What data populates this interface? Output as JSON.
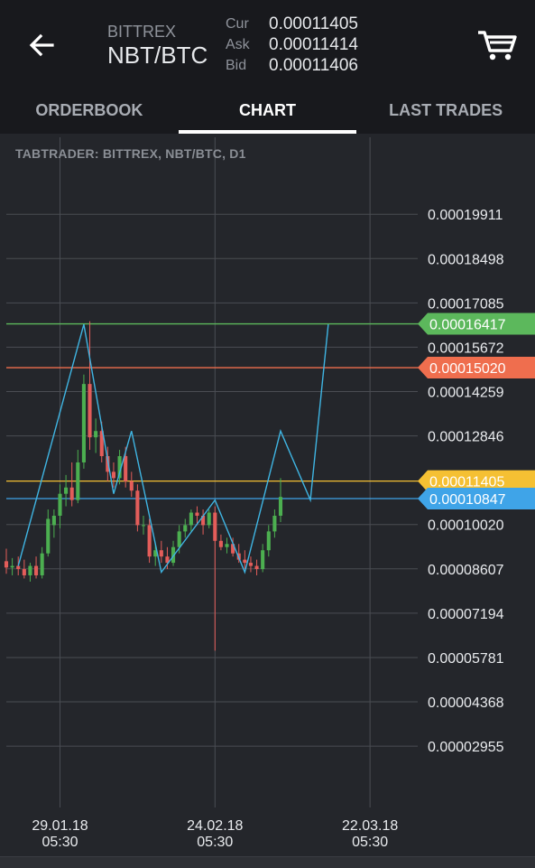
{
  "header": {
    "exchange": "BITTREX",
    "pair": "NBT/BTC",
    "quotes": [
      {
        "label": "Cur",
        "value": "0.00011405"
      },
      {
        "label": "Ask",
        "value": "0.00011414"
      },
      {
        "label": "Bid",
        "value": "0.00011406"
      }
    ],
    "back_icon": "arrow-left-icon",
    "cart_icon": "shopping-cart-icon"
  },
  "tabs": [
    {
      "label": "ORDERBOOK",
      "active": false
    },
    {
      "label": "CHART",
      "active": true
    },
    {
      "label": "LAST TRADES",
      "active": false
    }
  ],
  "chart_caption": "TABTRADER: BITTREX, NBT/BTC, D1",
  "chart_data": {
    "type": "candlestick",
    "title": "TABTRADER: BITTREX, NBT/BTC, D1",
    "y_ticks": [
      "0.00019911",
      "0.00018498",
      "0.00017085",
      "0.00015672",
      "0.00014259",
      "0.00012846",
      "0.00010020",
      "0.00008607",
      "0.00007194",
      "0.00005781",
      "0.00004368",
      "0.00002955"
    ],
    "x_ticks": [
      {
        "date": "29.01.18",
        "time": "05:30",
        "day": 0
      },
      {
        "date": "24.02.18",
        "time": "05:30",
        "day": 26
      },
      {
        "date": "22.03.18",
        "time": "05:30",
        "day": 52
      }
    ],
    "ylim": [
      1e-05,
      0.000215
    ],
    "xlim": [
      -9,
      60
    ],
    "colors": {
      "up": "#4caf50",
      "down": "#e35d5a",
      "grid": "#4a4d53",
      "axis_text": "#e9ebee",
      "trend": "#3fb5e3"
    },
    "price_lines": [
      {
        "value": "0.00016417",
        "color": "#5cb85c"
      },
      {
        "value": "0.00015020",
        "color": "#ef6e4e"
      },
      {
        "value": "0.00011405",
        "color": "#f5c033"
      },
      {
        "value": "0.00010847",
        "color": "#3fa4e8"
      }
    ],
    "candles": [
      {
        "day": -9,
        "o": 8.85e-05,
        "h": 9.25e-05,
        "l": 8.45e-05,
        "c": 8.65e-05
      },
      {
        "day": -8,
        "o": 8.65e-05,
        "h": 8.95e-05,
        "l": 8.4e-05,
        "c": 8.7e-05
      },
      {
        "day": -7,
        "o": 8.7e-05,
        "h": 9e-05,
        "l": 8.4e-05,
        "c": 8.6e-05
      },
      {
        "day": -6,
        "o": 8.6e-05,
        "h": 8.9e-05,
        "l": 8.3e-05,
        "c": 8.4e-05
      },
      {
        "day": -5,
        "o": 8.4e-05,
        "h": 8.8e-05,
        "l": 8.2e-05,
        "c": 8.7e-05
      },
      {
        "day": -4,
        "o": 8.7e-05,
        "h": 9e-05,
        "l": 8.3e-05,
        "c": 8.4e-05
      },
      {
        "day": -3,
        "o": 8.4e-05,
        "h": 9.3e-05,
        "l": 8.3e-05,
        "c": 9.1e-05
      },
      {
        "day": -2,
        "o": 9.1e-05,
        "h": 0.000105,
        "l": 9e-05,
        "c": 0.000102
      },
      {
        "day": -1,
        "o": 0.0001,
        "h": 0.000105,
        "l": 9.6e-05,
        "c": 0.000103
      },
      {
        "day": 0,
        "o": 0.000103,
        "h": 0.000113,
        "l": 9.9e-05,
        "c": 0.00011
      },
      {
        "day": 1,
        "o": 0.00011,
        "h": 0.000116,
        "l": 0.000106,
        "c": 0.000112
      },
      {
        "day": 2,
        "o": 0.000112,
        "h": 0.00012,
        "l": 0.000106,
        "c": 0.000108
      },
      {
        "day": 3,
        "o": 0.000108,
        "h": 0.000124,
        "l": 0.000107,
        "c": 0.00012
      },
      {
        "day": 4,
        "o": 0.00012,
        "h": 0.000148,
        "l": 0.000118,
        "c": 0.000145
      },
      {
        "day": 5,
        "o": 0.000145,
        "h": 0.000165,
        "l": 0.000124,
        "c": 0.000128
      },
      {
        "day": 6,
        "o": 0.000128,
        "h": 0.000134,
        "l": 0.000123,
        "c": 0.00013
      },
      {
        "day": 7,
        "o": 0.00013,
        "h": 0.000133,
        "l": 0.00012,
        "c": 0.000122
      },
      {
        "day": 8,
        "o": 0.000122,
        "h": 0.000125,
        "l": 0.000114,
        "c": 0.000117
      },
      {
        "day": 9,
        "o": 0.000117,
        "h": 0.00012,
        "l": 0.000112,
        "c": 0.000115
      },
      {
        "day": 10,
        "o": 0.000115,
        "h": 0.000124,
        "l": 0.000113,
        "c": 0.000122
      },
      {
        "day": 11,
        "o": 0.000122,
        "h": 0.000125,
        "l": 0.000112,
        "c": 0.000114
      },
      {
        "day": 12,
        "o": 0.000114,
        "h": 0.000117,
        "l": 0.000109,
        "c": 0.000111
      },
      {
        "day": 13,
        "o": 0.000111,
        "h": 0.000113,
        "l": 9.8e-05,
        "c": 0.0001
      },
      {
        "day": 14,
        "o": 0.0001,
        "h": 0.000103,
        "l": 9.7e-05,
        "c": 0.0001
      },
      {
        "day": 15,
        "o": 0.0001,
        "h": 0.000102,
        "l": 8.8e-05,
        "c": 9e-05
      },
      {
        "day": 16,
        "o": 9e-05,
        "h": 9.4e-05,
        "l": 8.7e-05,
        "c": 9.2e-05
      },
      {
        "day": 17,
        "o": 9.2e-05,
        "h": 9.5e-05,
        "l": 8.8e-05,
        "c": 9e-05
      },
      {
        "day": 18,
        "o": 9e-05,
        "h": 9.3e-05,
        "l": 8.6e-05,
        "c": 8.8e-05
      },
      {
        "day": 19,
        "o": 8.8e-05,
        "h": 9.5e-05,
        "l": 8.7e-05,
        "c": 9.3e-05
      },
      {
        "day": 20,
        "o": 9.3e-05,
        "h": 0.0001,
        "l": 9.1e-05,
        "c": 9.8e-05
      },
      {
        "day": 21,
        "o": 9.8e-05,
        "h": 0.000102,
        "l": 9.6e-05,
        "c": 0.0001
      },
      {
        "day": 22,
        "o": 0.0001,
        "h": 0.000105,
        "l": 9.8e-05,
        "c": 0.000104
      },
      {
        "day": 23,
        "o": 0.000104,
        "h": 0.000106,
        "l": 0.0001,
        "c": 0.000103
      },
      {
        "day": 24,
        "o": 0.000103,
        "h": 0.000105,
        "l": 9.7e-05,
        "c": 0.0001
      },
      {
        "day": 25,
        "o": 0.0001,
        "h": 0.000105,
        "l": 9.9e-05,
        "c": 0.000104
      },
      {
        "day": 26,
        "o": 0.000104,
        "h": 0.000106,
        "l": 6e-05,
        "c": 9.5e-05
      },
      {
        "day": 27,
        "o": 9.5e-05,
        "h": 9.7e-05,
        "l": 9.2e-05,
        "c": 9.3e-05
      },
      {
        "day": 28,
        "o": 9.3e-05,
        "h": 9.6e-05,
        "l": 9.1e-05,
        "c": 9.4e-05
      },
      {
        "day": 29,
        "o": 9.4e-05,
        "h": 9.6e-05,
        "l": 9e-05,
        "c": 9.1e-05
      },
      {
        "day": 30,
        "o": 9.1e-05,
        "h": 9.4e-05,
        "l": 8.8e-05,
        "c": 8.9e-05
      },
      {
        "day": 31,
        "o": 8.9e-05,
        "h": 9.2e-05,
        "l": 8.6e-05,
        "c": 8.8e-05
      },
      {
        "day": 32,
        "o": 8.8e-05,
        "h": 9e-05,
        "l": 8.5e-05,
        "c": 8.7e-05
      },
      {
        "day": 33,
        "o": 8.7e-05,
        "h": 8.9e-05,
        "l": 8.4e-05,
        "c": 8.6e-05
      },
      {
        "day": 34,
        "o": 8.6e-05,
        "h": 9.4e-05,
        "l": 8.5e-05,
        "c": 9.2e-05
      },
      {
        "day": 35,
        "o": 9.2e-05,
        "h": 0.0001,
        "l": 9e-05,
        "c": 9.8e-05
      },
      {
        "day": 36,
        "o": 9.8e-05,
        "h": 0.000105,
        "l": 9.6e-05,
        "c": 0.000103
      },
      {
        "day": 37,
        "o": 0.000103,
        "h": 0.000115,
        "l": 0.000101,
        "c": 0.000109
      }
    ],
    "trend_line": [
      {
        "day": -7,
        "v": 8.7e-05
      },
      {
        "day": 4,
        "v": 0.000164
      },
      {
        "day": 9,
        "v": 0.00011
      },
      {
        "day": 12,
        "v": 0.00013
      },
      {
        "day": 17,
        "v": 8.5e-05
      },
      {
        "day": 26,
        "v": 0.000108
      },
      {
        "day": 31,
        "v": 8.5e-05
      },
      {
        "day": 37,
        "v": 0.00013
      },
      {
        "day": 42,
        "v": 0.000108
      },
      {
        "day": 45,
        "v": 0.000164
      }
    ]
  }
}
